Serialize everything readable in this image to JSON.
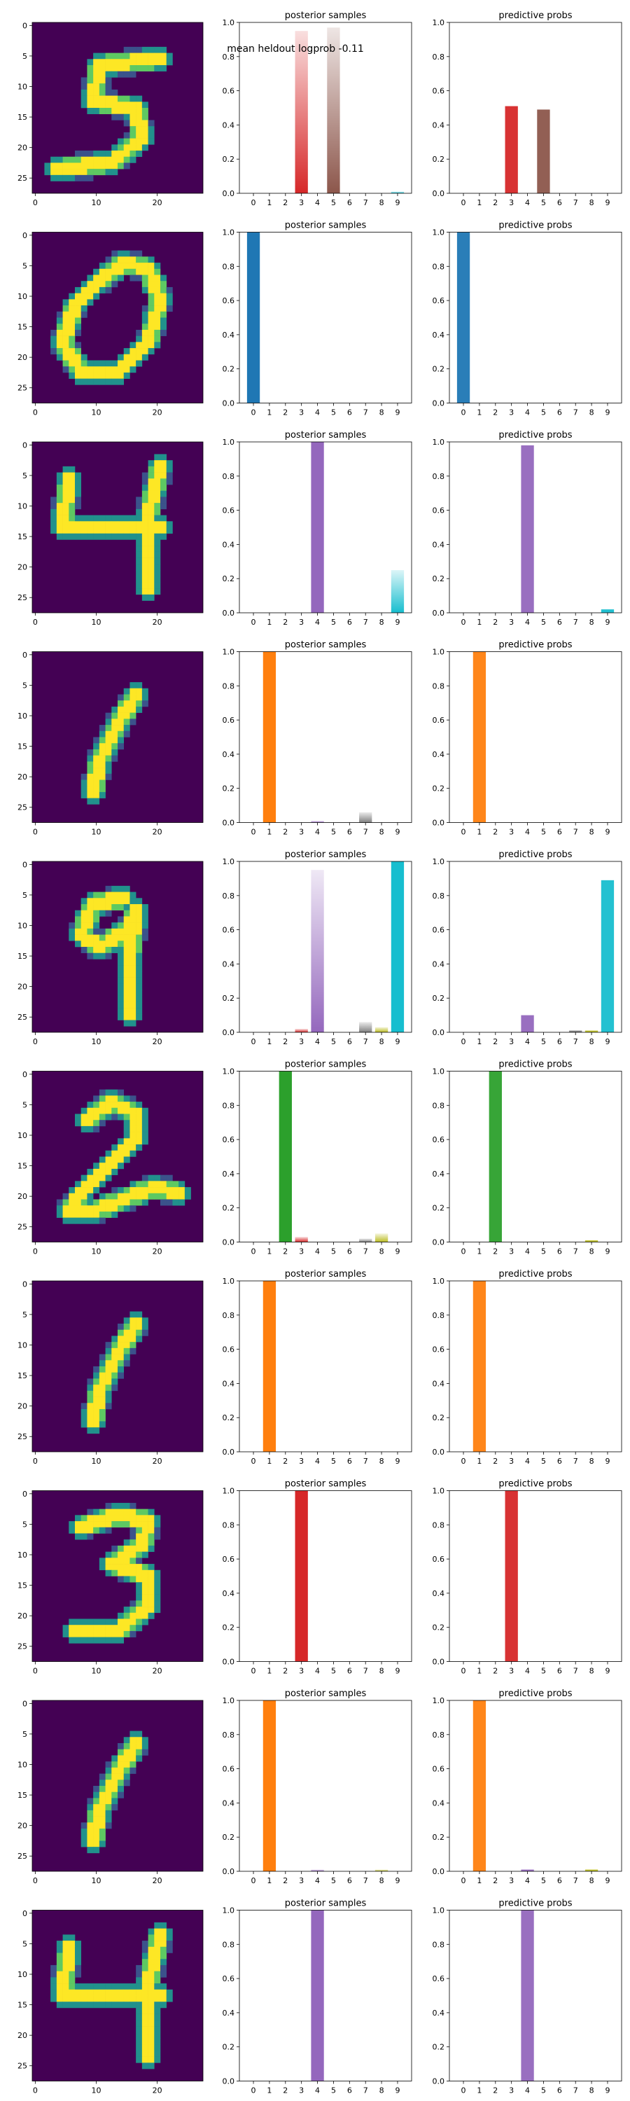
{
  "figure": {
    "annotation": "mean heldout logprob -0.11"
  },
  "chart_data": {
    "type": "bar",
    "classes": [
      "0",
      "1",
      "2",
      "3",
      "4",
      "5",
      "6",
      "7",
      "8",
      "9"
    ],
    "class_colors": [
      "#1f77b4",
      "#ff7f0e",
      "#2ca02c",
      "#d62728",
      "#9467bd",
      "#8c564b",
      "#e377c2",
      "#7f7f7f",
      "#bcbd22",
      "#17becf"
    ],
    "image_panel": {
      "x_ticks": [
        "0",
        "10",
        "20"
      ],
      "y_ticks": [
        "0",
        "5",
        "10",
        "15",
        "20",
        "25"
      ],
      "colormap": [
        "#440154",
        "#3b528b",
        "#21918c",
        "#5ec962",
        "#fde725"
      ]
    },
    "bar_panel": {
      "y_ticks": [
        "0.0",
        "0.2",
        "0.4",
        "0.6",
        "0.8",
        "1.0"
      ],
      "ylim": [
        0,
        1
      ]
    },
    "rows": [
      {
        "digit": "5",
        "posterior_title": "posterior samples",
        "posterior": [
          0,
          0,
          0,
          0.95,
          0,
          0.97,
          0,
          0,
          0,
          0.01
        ],
        "predictive_title": "predictive probs",
        "predictive": [
          0,
          0,
          0,
          0.51,
          0,
          0.49,
          0,
          0,
          0,
          0
        ]
      },
      {
        "digit": "0",
        "posterior_title": "posterior samples",
        "posterior": [
          1.0,
          0,
          0,
          0,
          0,
          0,
          0,
          0,
          0,
          0
        ],
        "predictive_title": "predictive probs",
        "predictive": [
          1.0,
          0,
          0,
          0,
          0,
          0,
          0,
          0,
          0,
          0
        ]
      },
      {
        "digit": "4",
        "posterior_title": "posterior samples",
        "posterior": [
          0,
          0,
          0,
          0,
          1.0,
          0,
          0,
          0,
          0,
          0.25
        ],
        "predictive_title": "predictive probs",
        "predictive": [
          0,
          0,
          0,
          0,
          0.98,
          0,
          0,
          0,
          0,
          0.02
        ]
      },
      {
        "digit": "1",
        "posterior_title": "posterior samples",
        "posterior": [
          0,
          1.0,
          0,
          0,
          0.01,
          0,
          0,
          0.06,
          0,
          0
        ],
        "predictive_title": "predictive probs",
        "predictive": [
          0,
          1.0,
          0,
          0,
          0,
          0,
          0,
          0,
          0,
          0
        ]
      },
      {
        "digit": "9",
        "posterior_title": "posterior samples",
        "posterior": [
          0,
          0,
          0,
          0.02,
          0.95,
          0,
          0,
          0.06,
          0.03,
          1.0
        ],
        "predictive_title": "predictive probs",
        "predictive": [
          0,
          0,
          0,
          0,
          0.1,
          0,
          0,
          0.01,
          0.01,
          0.89
        ]
      },
      {
        "digit": "2",
        "posterior_title": "posterior samples",
        "posterior": [
          0,
          0,
          1.0,
          0.03,
          0,
          0,
          0,
          0.02,
          0.05,
          0
        ],
        "predictive_title": "predictive probs",
        "predictive": [
          0,
          0,
          1.0,
          0,
          0,
          0,
          0,
          0,
          0.01,
          0
        ]
      },
      {
        "digit": "1",
        "posterior_title": "posterior samples",
        "posterior": [
          0,
          1.0,
          0,
          0,
          0,
          0,
          0,
          0,
          0,
          0
        ],
        "predictive_title": "predictive probs",
        "predictive": [
          0,
          1.0,
          0,
          0,
          0,
          0,
          0,
          0,
          0,
          0
        ]
      },
      {
        "digit": "3",
        "posterior_title": "posterior samples",
        "posterior": [
          0,
          0,
          0,
          1.0,
          0,
          0,
          0,
          0,
          0,
          0
        ],
        "predictive_title": "predictive probs",
        "predictive": [
          0,
          0,
          0,
          1.0,
          0,
          0,
          0,
          0,
          0,
          0
        ]
      },
      {
        "digit": "1",
        "posterior_title": "posterior samples",
        "posterior": [
          0,
          1.0,
          0,
          0,
          0.01,
          0,
          0,
          0,
          0.01,
          0
        ],
        "predictive_title": "predictive probs",
        "predictive": [
          0,
          1.0,
          0,
          0,
          0.01,
          0,
          0,
          0,
          0.01,
          0
        ]
      },
      {
        "digit": "4",
        "posterior_title": "posterior samples",
        "posterior": [
          0,
          0,
          0,
          0,
          1.0,
          0,
          0,
          0,
          0,
          0
        ],
        "predictive_title": "predictive probs",
        "predictive": [
          0,
          0,
          0,
          0,
          1.0,
          0,
          0,
          0,
          0,
          0
        ]
      }
    ]
  }
}
